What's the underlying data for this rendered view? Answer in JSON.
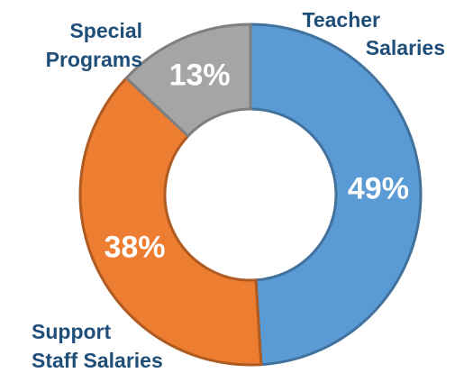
{
  "chart_data": {
    "type": "donut",
    "categories": [
      "Teacher Salaries",
      "Support Staff Salaries",
      "Special Programs"
    ],
    "values": [
      49,
      38,
      13
    ],
    "value_labels": [
      "49%",
      "38%",
      "13%"
    ],
    "colors": [
      "#5b9bd5",
      "#ed7d31",
      "#a5a5a5"
    ]
  }
}
